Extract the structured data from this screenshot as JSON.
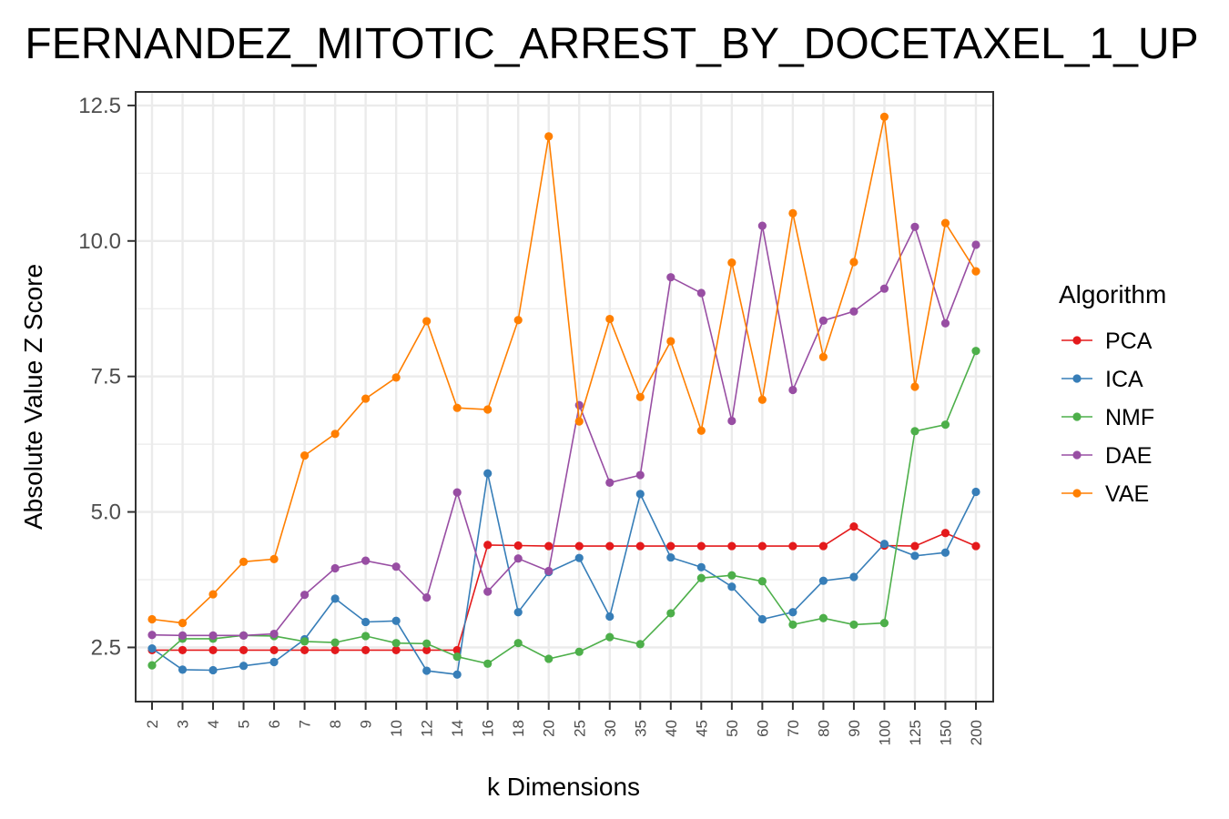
{
  "chart_data": {
    "type": "line",
    "title": "FERNANDEZ_MITOTIC_ARREST_BY_DOCETAXEL_1_UP",
    "xlabel": "k Dimensions",
    "ylabel": "Absolute Value Z Score",
    "categories": [
      "2",
      "3",
      "4",
      "5",
      "6",
      "7",
      "8",
      "9",
      "10",
      "12",
      "14",
      "16",
      "18",
      "20",
      "25",
      "30",
      "35",
      "40",
      "45",
      "50",
      "60",
      "70",
      "80",
      "90",
      "100",
      "125",
      "150",
      "200"
    ],
    "y_ticks": [
      "2.5",
      "5.0",
      "7.5",
      "10.0",
      "12.5"
    ],
    "ylim": [
      1.5,
      12.75
    ],
    "grid": true,
    "legend": {
      "title": "Algorithm",
      "position": "right"
    },
    "series": [
      {
        "name": "PCA",
        "color": "#e41a1c",
        "values": [
          2.45,
          2.45,
          2.45,
          2.45,
          2.45,
          2.45,
          2.45,
          2.45,
          2.45,
          2.45,
          2.45,
          4.39,
          4.38,
          4.37,
          4.37,
          4.37,
          4.37,
          4.37,
          4.37,
          4.37,
          4.37,
          4.37,
          4.37,
          4.73,
          4.38,
          4.37,
          4.61,
          4.37
        ]
      },
      {
        "name": "ICA",
        "color": "#377eb8",
        "values": [
          2.48,
          2.09,
          2.08,
          2.16,
          2.23,
          2.65,
          3.4,
          2.97,
          2.99,
          2.07,
          2.0,
          5.71,
          3.15,
          3.89,
          4.15,
          3.07,
          5.33,
          4.16,
          3.98,
          3.62,
          3.02,
          3.15,
          3.73,
          3.8,
          4.41,
          4.19,
          4.25,
          5.37
        ]
      },
      {
        "name": "NMF",
        "color": "#4daf4a",
        "values": [
          2.17,
          2.66,
          2.66,
          2.72,
          2.71,
          2.61,
          2.59,
          2.71,
          2.58,
          2.57,
          2.33,
          2.2,
          2.58,
          2.29,
          2.42,
          2.69,
          2.56,
          3.13,
          3.78,
          3.83,
          3.72,
          2.92,
          3.04,
          2.92,
          2.95,
          6.49,
          6.61,
          7.97
        ]
      },
      {
        "name": "DAE",
        "color": "#984ea3",
        "values": [
          2.73,
          2.72,
          2.72,
          2.72,
          2.75,
          3.47,
          3.96,
          4.1,
          3.99,
          3.42,
          5.36,
          3.53,
          4.14,
          3.91,
          6.97,
          5.54,
          5.68,
          9.33,
          9.04,
          6.68,
          10.28,
          7.25,
          8.53,
          8.7,
          9.12,
          10.26,
          8.48,
          9.93
        ]
      },
      {
        "name": "VAE",
        "color": "#ff7f00",
        "values": [
          3.02,
          2.95,
          3.48,
          4.08,
          4.13,
          6.04,
          6.44,
          7.09,
          7.48,
          8.52,
          6.92,
          6.89,
          8.54,
          11.93,
          6.67,
          8.56,
          7.12,
          8.15,
          6.5,
          9.6,
          7.07,
          10.51,
          7.86,
          9.61,
          12.29,
          7.31,
          10.33,
          9.44
        ]
      }
    ]
  }
}
